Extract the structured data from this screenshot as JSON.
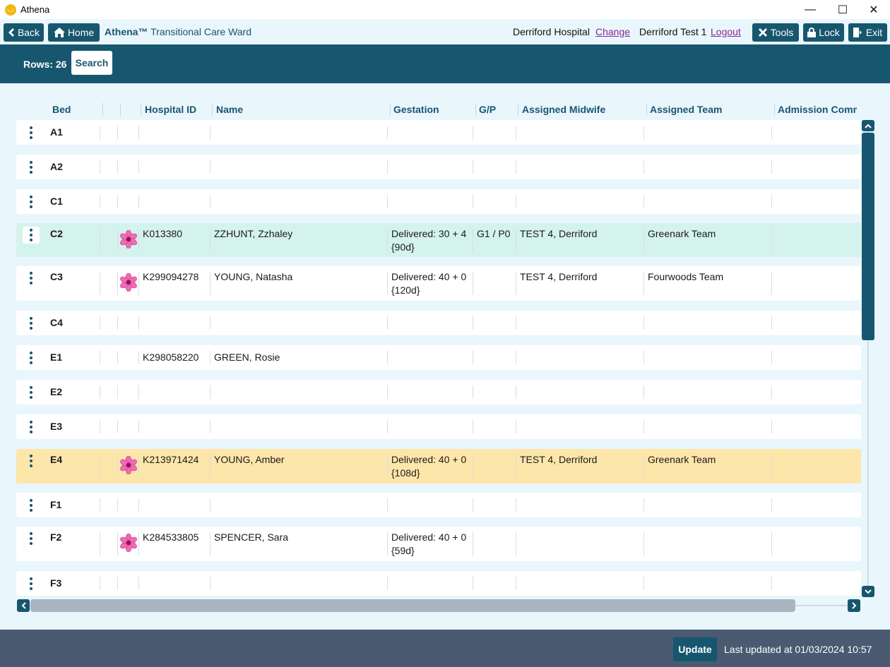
{
  "window": {
    "title": "Athena",
    "minimize": "—",
    "maximize": "☐",
    "close": "✕"
  },
  "nav": {
    "back": "Back",
    "home": "Home",
    "brand": "Athena™",
    "ward": "Transitional Care Ward",
    "hospital": "Derriford Hospital",
    "change": "Change",
    "user": "Derriford Test 1",
    "logout": "Logout",
    "tools": "Tools",
    "lock": "Lock",
    "exit": "Exit"
  },
  "search": {
    "rows_label": "Rows: 26",
    "button": "Search"
  },
  "columns": [
    "Bed",
    "",
    "",
    "Hospital ID",
    "Name",
    "Gestation",
    "G/P",
    "Assigned Midwife",
    "Assigned Team",
    "Admission Comm"
  ],
  "rows": [
    {
      "bed": "A1",
      "flower": false,
      "hospital_id": "",
      "name": "",
      "gestation": "",
      "gestation2": "",
      "gp": "",
      "midwife": "",
      "team": "",
      "highlight": "none"
    },
    {
      "bed": "A2",
      "flower": false,
      "hospital_id": "",
      "name": "",
      "gestation": "",
      "gestation2": "",
      "gp": "",
      "midwife": "",
      "team": "",
      "highlight": "none"
    },
    {
      "bed": "C1",
      "flower": false,
      "hospital_id": "",
      "name": "",
      "gestation": "",
      "gestation2": "",
      "gp": "",
      "midwife": "",
      "team": "",
      "highlight": "none"
    },
    {
      "bed": "C2",
      "flower": true,
      "hospital_id": "K013380",
      "name": "ZZHUNT, Zzhaley",
      "gestation": "Delivered: 30 + 4",
      "gestation2": "{90d}",
      "gp": "G1 / P0",
      "midwife": "TEST 4, Derriford",
      "team": "Greenark Team",
      "highlight": "selected"
    },
    {
      "bed": "C3",
      "flower": true,
      "hospital_id": "K299094278",
      "name": "YOUNG, Natasha",
      "gestation": "Delivered: 40 + 0",
      "gestation2": "{120d}",
      "gp": "",
      "midwife": "TEST 4, Derriford",
      "team": "Fourwoods Team",
      "highlight": "none"
    },
    {
      "bed": "C4",
      "flower": false,
      "hospital_id": "",
      "name": "",
      "gestation": "",
      "gestation2": "",
      "gp": "",
      "midwife": "",
      "team": "",
      "highlight": "none"
    },
    {
      "bed": "E1",
      "flower": false,
      "hospital_id": "K298058220",
      "name": "GREEN, Rosie",
      "gestation": "",
      "gestation2": "",
      "gp": "",
      "midwife": "",
      "team": "",
      "highlight": "none"
    },
    {
      "bed": "E2",
      "flower": false,
      "hospital_id": "",
      "name": "",
      "gestation": "",
      "gestation2": "",
      "gp": "",
      "midwife": "",
      "team": "",
      "highlight": "none"
    },
    {
      "bed": "E3",
      "flower": false,
      "hospital_id": "",
      "name": "",
      "gestation": "",
      "gestation2": "",
      "gp": "",
      "midwife": "",
      "team": "",
      "highlight": "none"
    },
    {
      "bed": "E4",
      "flower": true,
      "hospital_id": "K213971424",
      "name": "YOUNG, Amber",
      "gestation": "Delivered: 40 + 0",
      "gestation2": "{108d}",
      "gp": "",
      "midwife": "TEST 4, Derriford",
      "team": "Greenark Team",
      "highlight": "warning"
    },
    {
      "bed": "F1",
      "flower": false,
      "hospital_id": "",
      "name": "",
      "gestation": "",
      "gestation2": "",
      "gp": "",
      "midwife": "",
      "team": "",
      "highlight": "none"
    },
    {
      "bed": "F2",
      "flower": true,
      "hospital_id": "K284533805",
      "name": "SPENCER, Sara",
      "gestation": "Delivered: 40 + 0",
      "gestation2": "{59d}",
      "gp": "",
      "midwife": "",
      "team": "",
      "highlight": "none"
    },
    {
      "bed": "F3",
      "flower": false,
      "hospital_id": "",
      "name": "",
      "gestation": "",
      "gestation2": "",
      "gp": "",
      "midwife": "",
      "team": "",
      "highlight": "none"
    }
  ],
  "footer": {
    "update": "Update",
    "last_updated": "Last updated at 01/03/2024 10:57"
  },
  "colors": {
    "primary": "#17566f",
    "selected": "#d4f3ec",
    "warning": "#fde6a9",
    "footer": "#4a5a70"
  },
  "icons": {
    "row_menu": "kebab-icon",
    "mother": "flower-icon"
  }
}
